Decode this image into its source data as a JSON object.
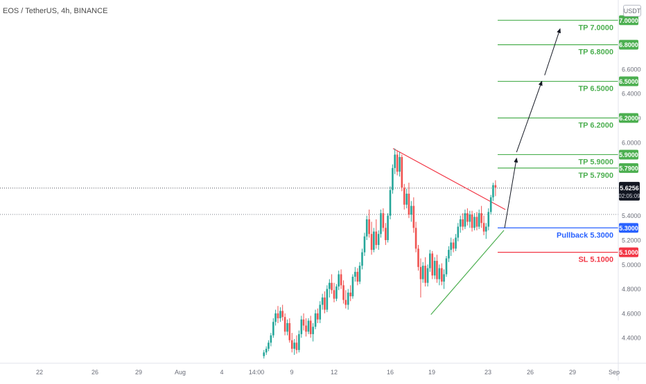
{
  "header": {
    "title": "EOS / TetherUS, 4h, BINANCE",
    "currency": "USDT"
  },
  "colors": {
    "candle_up": "#26a69a",
    "candle_down": "#ef5350",
    "take_profit": "#4caf50",
    "stop_loss": "#f23645",
    "pullback": "#2962ff",
    "price_tag": "#131722",
    "resistance_line": "#f23645",
    "support_line": "#4caf50"
  },
  "chart_data": {
    "type": "candlestick",
    "title": "EOS / TetherUS, 4h, BINANCE",
    "y_axis": {
      "range": [
        4.25,
        7.1
      ],
      "ticks": [
        "4.4000",
        "4.6000",
        "4.8000",
        "5.0000",
        "5.2000",
        "5.4000",
        "6.0000",
        "6.2000",
        "6.4000",
        "6.6000"
      ]
    },
    "x_axis": {
      "ticks": [
        "22",
        "26",
        "29",
        "Aug",
        "4",
        "14:00",
        "9",
        "12",
        "16",
        "19",
        "23",
        "26",
        "29",
        "Sep"
      ]
    },
    "current_price": {
      "value": 5.6256,
      "label": "5.6256",
      "countdown": "02:05:09"
    },
    "reference_line": 5.41,
    "levels": [
      {
        "kind": "tp",
        "value": 7.0,
        "tag": "7.0000",
        "label": "TP 7.0000"
      },
      {
        "kind": "tp",
        "value": 6.8,
        "tag": "6.8000",
        "label": "TP 6.8000"
      },
      {
        "kind": "tp",
        "value": 6.5,
        "tag": "6.5000",
        "label": "TP 6.5000"
      },
      {
        "kind": "tp",
        "value": 6.2,
        "tag": "6.2000",
        "label": "TP 6.2000"
      },
      {
        "kind": "tp",
        "value": 5.9,
        "tag": "5.9000",
        "label": "TP 5.9000"
      },
      {
        "kind": "tp",
        "value": 5.79,
        "tag": "5.7900",
        "label": "TP 5.7900"
      },
      {
        "kind": "pullback",
        "value": 5.3,
        "tag": "5.3000",
        "label": "Pullback 5.3000"
      },
      {
        "kind": "sl",
        "value": 5.1,
        "tag": "5.1000",
        "label": "SL 5.1000"
      }
    ],
    "trendlines": [
      {
        "name": "resistance",
        "from": {
          "t": 16.2,
          "price": 5.95
        },
        "to": {
          "t": 24.2,
          "price": 5.45
        }
      },
      {
        "name": "support",
        "from": {
          "t": 18.9,
          "price": 4.59
        },
        "to": {
          "t": 24.1,
          "price": 5.28
        }
      }
    ],
    "projection_arrows": [
      {
        "from": {
          "t": 24.15,
          "price": 5.3
        },
        "to": {
          "t": 25.0,
          "price": 5.87
        }
      },
      {
        "from": {
          "t": 25.0,
          "price": 5.92
        },
        "to": {
          "t": 26.8,
          "price": 6.5
        }
      },
      {
        "from": {
          "t": 27.0,
          "price": 6.55
        },
        "to": {
          "t": 28.1,
          "price": 6.93
        }
      }
    ],
    "candles": [
      {
        "t": 7.0,
        "o": 4.25,
        "h": 4.3,
        "l": 4.23,
        "c": 4.28
      },
      {
        "t": 7.17,
        "o": 4.28,
        "h": 4.33,
        "l": 4.26,
        "c": 4.31
      },
      {
        "t": 7.33,
        "o": 4.31,
        "h": 4.38,
        "l": 4.29,
        "c": 4.36
      },
      {
        "t": 7.5,
        "o": 4.36,
        "h": 4.44,
        "l": 4.33,
        "c": 4.42
      },
      {
        "t": 7.67,
        "o": 4.42,
        "h": 4.56,
        "l": 4.4,
        "c": 4.53
      },
      {
        "t": 7.83,
        "o": 4.53,
        "h": 4.63,
        "l": 4.5,
        "c": 4.6
      },
      {
        "t": 8.0,
        "o": 4.6,
        "h": 4.66,
        "l": 4.52,
        "c": 4.56
      },
      {
        "t": 8.17,
        "o": 4.56,
        "h": 4.65,
        "l": 4.53,
        "c": 4.62
      },
      {
        "t": 8.33,
        "o": 4.62,
        "h": 4.67,
        "l": 4.54,
        "c": 4.57
      },
      {
        "t": 8.5,
        "o": 4.57,
        "h": 4.6,
        "l": 4.42,
        "c": 4.45
      },
      {
        "t": 8.67,
        "o": 4.45,
        "h": 4.55,
        "l": 4.42,
        "c": 4.52
      },
      {
        "t": 8.83,
        "o": 4.52,
        "h": 4.56,
        "l": 4.36,
        "c": 4.38
      },
      {
        "t": 9.0,
        "o": 4.38,
        "h": 4.44,
        "l": 4.28,
        "c": 4.31
      },
      {
        "t": 9.17,
        "o": 4.31,
        "h": 4.39,
        "l": 4.26,
        "c": 4.36
      },
      {
        "t": 9.33,
        "o": 4.36,
        "h": 4.42,
        "l": 4.27,
        "c": 4.3
      },
      {
        "t": 9.5,
        "o": 4.3,
        "h": 4.46,
        "l": 4.28,
        "c": 4.43
      },
      {
        "t": 9.67,
        "o": 4.43,
        "h": 4.58,
        "l": 4.4,
        "c": 4.55
      },
      {
        "t": 9.83,
        "o": 4.55,
        "h": 4.6,
        "l": 4.46,
        "c": 4.5
      },
      {
        "t": 10.0,
        "o": 4.5,
        "h": 4.56,
        "l": 4.41,
        "c": 4.45
      },
      {
        "t": 10.17,
        "o": 4.45,
        "h": 4.56,
        "l": 4.43,
        "c": 4.54
      },
      {
        "t": 10.33,
        "o": 4.54,
        "h": 4.58,
        "l": 4.4,
        "c": 4.43
      },
      {
        "t": 10.5,
        "o": 4.43,
        "h": 4.52,
        "l": 4.37,
        "c": 4.49
      },
      {
        "t": 10.67,
        "o": 4.49,
        "h": 4.63,
        "l": 4.47,
        "c": 4.6
      },
      {
        "t": 10.83,
        "o": 4.6,
        "h": 4.64,
        "l": 4.52,
        "c": 4.55
      },
      {
        "t": 11.0,
        "o": 4.55,
        "h": 4.7,
        "l": 4.52,
        "c": 4.67
      },
      {
        "t": 11.17,
        "o": 4.67,
        "h": 4.76,
        "l": 4.63,
        "c": 4.73
      },
      {
        "t": 11.33,
        "o": 4.73,
        "h": 4.78,
        "l": 4.6,
        "c": 4.63
      },
      {
        "t": 11.5,
        "o": 4.63,
        "h": 4.83,
        "l": 4.61,
        "c": 4.8
      },
      {
        "t": 11.67,
        "o": 4.8,
        "h": 4.88,
        "l": 4.73,
        "c": 4.85
      },
      {
        "t": 11.83,
        "o": 4.85,
        "h": 4.92,
        "l": 4.76,
        "c": 4.79
      },
      {
        "t": 12.0,
        "o": 4.79,
        "h": 4.85,
        "l": 4.69,
        "c": 4.72
      },
      {
        "t": 12.17,
        "o": 4.72,
        "h": 4.84,
        "l": 4.7,
        "c": 4.82
      },
      {
        "t": 12.33,
        "o": 4.82,
        "h": 4.95,
        "l": 4.79,
        "c": 4.92
      },
      {
        "t": 12.5,
        "o": 4.92,
        "h": 4.96,
        "l": 4.8,
        "c": 4.83
      },
      {
        "t": 12.67,
        "o": 4.83,
        "h": 4.87,
        "l": 4.68,
        "c": 4.71
      },
      {
        "t": 12.83,
        "o": 4.71,
        "h": 4.79,
        "l": 4.64,
        "c": 4.67
      },
      {
        "t": 13.0,
        "o": 4.67,
        "h": 4.8,
        "l": 4.63,
        "c": 4.77
      },
      {
        "t": 13.17,
        "o": 4.77,
        "h": 4.83,
        "l": 4.7,
        "c": 4.74
      },
      {
        "t": 13.33,
        "o": 4.74,
        "h": 4.92,
        "l": 4.72,
        "c": 4.9
      },
      {
        "t": 13.5,
        "o": 4.9,
        "h": 4.98,
        "l": 4.86,
        "c": 4.94
      },
      {
        "t": 13.67,
        "o": 4.94,
        "h": 4.97,
        "l": 4.83,
        "c": 4.86
      },
      {
        "t": 13.83,
        "o": 4.86,
        "h": 5.02,
        "l": 4.84,
        "c": 4.99
      },
      {
        "t": 14.0,
        "o": 4.99,
        "h": 5.13,
        "l": 4.96,
        "c": 5.1
      },
      {
        "t": 14.17,
        "o": 5.1,
        "h": 5.26,
        "l": 5.07,
        "c": 5.23
      },
      {
        "t": 14.33,
        "o": 5.23,
        "h": 5.4,
        "l": 5.2,
        "c": 5.37
      },
      {
        "t": 14.5,
        "o": 5.37,
        "h": 5.45,
        "l": 5.22,
        "c": 5.25
      },
      {
        "t": 14.67,
        "o": 5.25,
        "h": 5.35,
        "l": 5.08,
        "c": 5.12
      },
      {
        "t": 14.83,
        "o": 5.12,
        "h": 5.3,
        "l": 5.1,
        "c": 5.27
      },
      {
        "t": 15.0,
        "o": 5.27,
        "h": 5.37,
        "l": 5.13,
        "c": 5.16
      },
      {
        "t": 15.17,
        "o": 5.16,
        "h": 5.28,
        "l": 5.12,
        "c": 5.25
      },
      {
        "t": 15.33,
        "o": 5.25,
        "h": 5.45,
        "l": 5.22,
        "c": 5.42
      },
      {
        "t": 15.5,
        "o": 5.42,
        "h": 5.46,
        "l": 5.27,
        "c": 5.3
      },
      {
        "t": 15.67,
        "o": 5.3,
        "h": 5.34,
        "l": 5.16,
        "c": 5.2
      },
      {
        "t": 15.83,
        "o": 5.2,
        "h": 5.42,
        "l": 5.18,
        "c": 5.4
      },
      {
        "t": 16.0,
        "o": 5.4,
        "h": 5.64,
        "l": 5.37,
        "c": 5.61
      },
      {
        "t": 16.17,
        "o": 5.61,
        "h": 5.82,
        "l": 5.58,
        "c": 5.79
      },
      {
        "t": 16.33,
        "o": 5.79,
        "h": 5.95,
        "l": 5.74,
        "c": 5.9
      },
      {
        "t": 16.5,
        "o": 5.9,
        "h": 5.93,
        "l": 5.73,
        "c": 5.76
      },
      {
        "t": 16.67,
        "o": 5.76,
        "h": 5.92,
        "l": 5.72,
        "c": 5.88
      },
      {
        "t": 16.83,
        "o": 5.88,
        "h": 5.9,
        "l": 5.6,
        "c": 5.63
      },
      {
        "t": 17.0,
        "o": 5.63,
        "h": 5.66,
        "l": 5.45,
        "c": 5.49
      },
      {
        "t": 17.17,
        "o": 5.49,
        "h": 5.62,
        "l": 5.46,
        "c": 5.58
      },
      {
        "t": 17.33,
        "o": 5.58,
        "h": 5.67,
        "l": 5.38,
        "c": 5.41
      },
      {
        "t": 17.5,
        "o": 5.41,
        "h": 5.52,
        "l": 5.35,
        "c": 5.48
      },
      {
        "t": 17.67,
        "o": 5.48,
        "h": 5.55,
        "l": 5.26,
        "c": 5.3
      },
      {
        "t": 17.83,
        "o": 5.3,
        "h": 5.35,
        "l": 5.1,
        "c": 5.13
      },
      {
        "t": 18.0,
        "o": 5.13,
        "h": 5.16,
        "l": 4.95,
        "c": 4.98
      },
      {
        "t": 18.17,
        "o": 4.98,
        "h": 5.05,
        "l": 4.73,
        "c": 4.88
      },
      {
        "t": 18.33,
        "o": 4.88,
        "h": 5.02,
        "l": 4.85,
        "c": 4.99
      },
      {
        "t": 18.5,
        "o": 4.99,
        "h": 5.06,
        "l": 4.82,
        "c": 4.85
      },
      {
        "t": 18.67,
        "o": 4.85,
        "h": 5.0,
        "l": 4.82,
        "c": 4.97
      },
      {
        "t": 18.83,
        "o": 4.97,
        "h": 5.12,
        "l": 4.94,
        "c": 5.09
      },
      {
        "t": 19.0,
        "o": 5.09,
        "h": 5.11,
        "l": 4.88,
        "c": 4.91
      },
      {
        "t": 19.17,
        "o": 4.91,
        "h": 5.06,
        "l": 4.88,
        "c": 5.03
      },
      {
        "t": 19.33,
        "o": 5.03,
        "h": 5.08,
        "l": 4.85,
        "c": 4.88
      },
      {
        "t": 19.5,
        "o": 4.88,
        "h": 5.0,
        "l": 4.83,
        "c": 4.97
      },
      {
        "t": 19.67,
        "o": 4.97,
        "h": 5.01,
        "l": 4.83,
        "c": 4.86
      },
      {
        "t": 19.83,
        "o": 4.86,
        "h": 4.96,
        "l": 4.8,
        "c": 4.92
      },
      {
        "t": 20.0,
        "o": 4.92,
        "h": 5.07,
        "l": 4.9,
        "c": 5.05
      },
      {
        "t": 20.17,
        "o": 5.05,
        "h": 5.15,
        "l": 5.02,
        "c": 5.12
      },
      {
        "t": 20.33,
        "o": 5.12,
        "h": 5.22,
        "l": 5.07,
        "c": 5.18
      },
      {
        "t": 20.5,
        "o": 5.18,
        "h": 5.21,
        "l": 5.1,
        "c": 5.13
      },
      {
        "t": 20.67,
        "o": 5.13,
        "h": 5.25,
        "l": 5.11,
        "c": 5.22
      },
      {
        "t": 20.83,
        "o": 5.22,
        "h": 5.34,
        "l": 5.19,
        "c": 5.31
      },
      {
        "t": 21.0,
        "o": 5.31,
        "h": 5.4,
        "l": 5.26,
        "c": 5.37
      },
      {
        "t": 21.17,
        "o": 5.37,
        "h": 5.42,
        "l": 5.28,
        "c": 5.31
      },
      {
        "t": 21.33,
        "o": 5.31,
        "h": 5.45,
        "l": 5.29,
        "c": 5.42
      },
      {
        "t": 21.5,
        "o": 5.42,
        "h": 5.46,
        "l": 5.32,
        "c": 5.35
      },
      {
        "t": 21.67,
        "o": 5.35,
        "h": 5.44,
        "l": 5.3,
        "c": 5.41
      },
      {
        "t": 21.83,
        "o": 5.41,
        "h": 5.44,
        "l": 5.27,
        "c": 5.3
      },
      {
        "t": 22.0,
        "o": 5.3,
        "h": 5.42,
        "l": 5.28,
        "c": 5.39
      },
      {
        "t": 22.17,
        "o": 5.39,
        "h": 5.43,
        "l": 5.28,
        "c": 5.31
      },
      {
        "t": 22.33,
        "o": 5.31,
        "h": 5.45,
        "l": 5.29,
        "c": 5.42
      },
      {
        "t": 22.5,
        "o": 5.42,
        "h": 5.48,
        "l": 5.3,
        "c": 5.34
      },
      {
        "t": 22.67,
        "o": 5.34,
        "h": 5.4,
        "l": 5.24,
        "c": 5.27
      },
      {
        "t": 22.83,
        "o": 5.27,
        "h": 5.34,
        "l": 5.21,
        "c": 5.31
      },
      {
        "t": 23.0,
        "o": 5.31,
        "h": 5.46,
        "l": 5.28,
        "c": 5.43
      },
      {
        "t": 23.17,
        "o": 5.43,
        "h": 5.57,
        "l": 5.41,
        "c": 5.55
      },
      {
        "t": 23.33,
        "o": 5.55,
        "h": 5.67,
        "l": 5.52,
        "c": 5.65
      },
      {
        "t": 23.5,
        "o": 5.65,
        "h": 5.69,
        "l": 5.56,
        "c": 5.63
      }
    ]
  }
}
